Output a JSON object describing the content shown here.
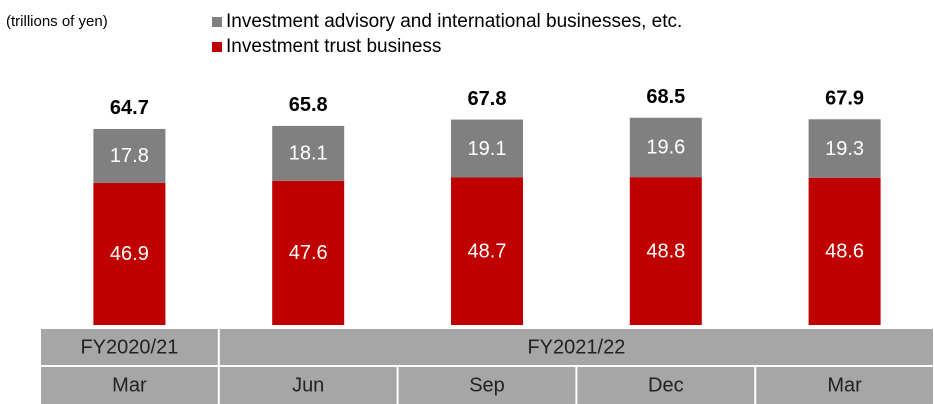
{
  "chart_data": {
    "type": "stacked_bar",
    "unit_label": "(trillions of yen)",
    "groups": [
      {
        "label": "FY2020/21",
        "categories": [
          "Mar"
        ]
      },
      {
        "label": "FY2021/22",
        "categories": [
          "Jun",
          "Sep",
          "Dec",
          "Mar"
        ]
      }
    ],
    "series": [
      {
        "name": "Investment trust business",
        "color": "#c00000",
        "values": [
          46.9,
          47.6,
          48.7,
          48.8,
          48.6
        ]
      },
      {
        "name": "Investment advisory and international businesses, etc.",
        "color": "#808080",
        "values": [
          17.8,
          18.1,
          19.1,
          19.6,
          19.3
        ]
      }
    ],
    "totals": [
      64.7,
      65.8,
      67.8,
      68.5,
      67.9
    ],
    "ylim": [
      0,
      100
    ]
  }
}
